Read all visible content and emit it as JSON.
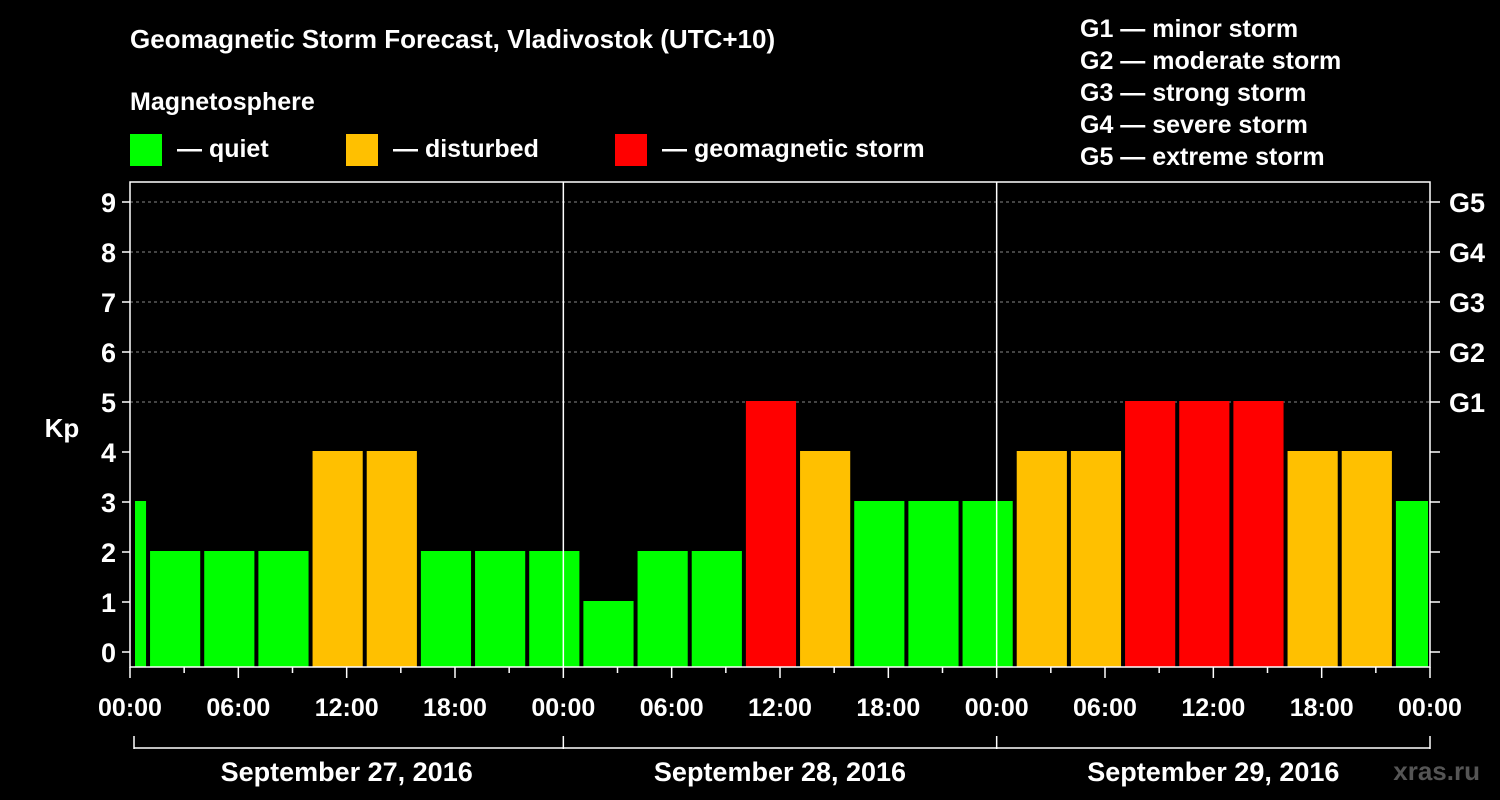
{
  "chart_data": {
    "type": "bar",
    "title": "Geomagnetic Storm Forecast, Vladivostok (UTC+10)",
    "legend_title": "Magnetosphere",
    "legend": [
      {
        "label": "— quiet",
        "color": "#00ff00"
      },
      {
        "label": "— disturbed",
        "color": "#ffc000"
      },
      {
        "label": "— geomagnetic storm",
        "color": "#ff0000"
      }
    ],
    "storm_scale": [
      "G1 — minor storm",
      "G2 — moderate storm",
      "G3 — strong storm",
      "G4 — severe storm",
      "G5 — extreme storm"
    ],
    "ylabel": "Kp",
    "ylim": [
      0,
      9
    ],
    "y_ticks": [
      "0",
      "1",
      "2",
      "3",
      "4",
      "5",
      "6",
      "7",
      "8",
      "9"
    ],
    "right_ticks": [
      {
        "kp": 5,
        "label": "G1"
      },
      {
        "kp": 6,
        "label": "G2"
      },
      {
        "kp": 7,
        "label": "G3"
      },
      {
        "kp": 8,
        "label": "G4"
      },
      {
        "kp": 9,
        "label": "G5"
      }
    ],
    "x_range_hours": [
      0,
      72
    ],
    "x_ticks": [
      {
        "hour": 0,
        "label": "00:00"
      },
      {
        "hour": 6,
        "label": "06:00"
      },
      {
        "hour": 12,
        "label": "12:00"
      },
      {
        "hour": 18,
        "label": "18:00"
      },
      {
        "hour": 24,
        "label": "00:00"
      },
      {
        "hour": 30,
        "label": "06:00"
      },
      {
        "hour": 36,
        "label": "12:00"
      },
      {
        "hour": 42,
        "label": "18:00"
      },
      {
        "hour": 48,
        "label": "00:00"
      },
      {
        "hour": 54,
        "label": "06:00"
      },
      {
        "hour": 60,
        "label": "12:00"
      },
      {
        "hour": 66,
        "label": "18:00"
      },
      {
        "hour": 72,
        "label": "00:00"
      }
    ],
    "days": [
      "September 27, 2016",
      "September 28, 2016",
      "September 29, 2016"
    ],
    "bars": [
      {
        "start": 0,
        "end": 1,
        "kp": 3,
        "level": "quiet"
      },
      {
        "start": 1,
        "end": 4,
        "kp": 2,
        "level": "quiet"
      },
      {
        "start": 4,
        "end": 7,
        "kp": 2,
        "level": "quiet"
      },
      {
        "start": 7,
        "end": 10,
        "kp": 2,
        "level": "quiet"
      },
      {
        "start": 10,
        "end": 13,
        "kp": 4,
        "level": "disturbed"
      },
      {
        "start": 13,
        "end": 16,
        "kp": 4,
        "level": "disturbed"
      },
      {
        "start": 16,
        "end": 19,
        "kp": 2,
        "level": "quiet"
      },
      {
        "start": 19,
        "end": 22,
        "kp": 2,
        "level": "quiet"
      },
      {
        "start": 22,
        "end": 25,
        "kp": 2,
        "level": "quiet"
      },
      {
        "start": 25,
        "end": 28,
        "kp": 1,
        "level": "quiet"
      },
      {
        "start": 28,
        "end": 31,
        "kp": 2,
        "level": "quiet"
      },
      {
        "start": 31,
        "end": 34,
        "kp": 2,
        "level": "quiet"
      },
      {
        "start": 34,
        "end": 37,
        "kp": 5,
        "level": "storm"
      },
      {
        "start": 37,
        "end": 40,
        "kp": 4,
        "level": "disturbed"
      },
      {
        "start": 40,
        "end": 43,
        "kp": 3,
        "level": "quiet"
      },
      {
        "start": 43,
        "end": 46,
        "kp": 3,
        "level": "quiet"
      },
      {
        "start": 46,
        "end": 49,
        "kp": 3,
        "level": "quiet"
      },
      {
        "start": 49,
        "end": 52,
        "kp": 4,
        "level": "disturbed"
      },
      {
        "start": 52,
        "end": 55,
        "kp": 4,
        "level": "disturbed"
      },
      {
        "start": 55,
        "end": 58,
        "kp": 5,
        "level": "storm"
      },
      {
        "start": 58,
        "end": 61,
        "kp": 5,
        "level": "storm"
      },
      {
        "start": 61,
        "end": 64,
        "kp": 5,
        "level": "storm"
      },
      {
        "start": 64,
        "end": 67,
        "kp": 4,
        "level": "disturbed"
      },
      {
        "start": 67,
        "end": 70,
        "kp": 4,
        "level": "disturbed"
      },
      {
        "start": 70,
        "end": 72,
        "kp": 3,
        "level": "quiet"
      }
    ],
    "level_colors": {
      "quiet": "#00ff00",
      "disturbed": "#ffc000",
      "storm": "#ff0000"
    },
    "grid": true
  },
  "watermark": "xras.ru"
}
